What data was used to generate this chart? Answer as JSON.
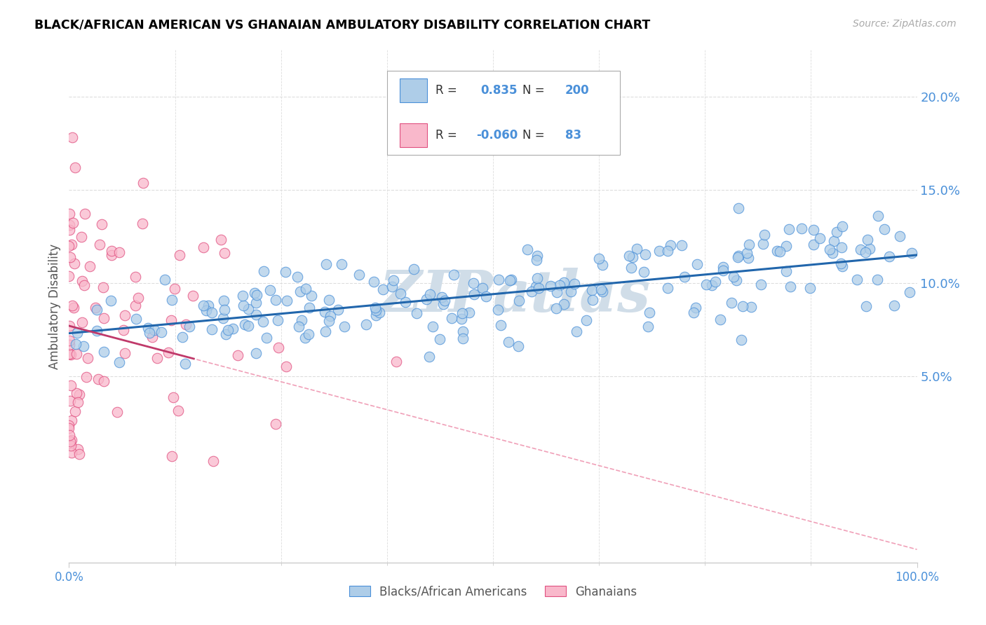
{
  "title": "BLACK/AFRICAN AMERICAN VS GHANAIAN AMBULATORY DISABILITY CORRELATION CHART",
  "source": "Source: ZipAtlas.com",
  "ylabel": "Ambulatory Disability",
  "blue_R": 0.835,
  "blue_N": 200,
  "pink_R": -0.06,
  "pink_N": 83,
  "blue_color": "#aecde8",
  "pink_color": "#f9b8cb",
  "blue_edge_color": "#4a90d9",
  "pink_edge_color": "#e05080",
  "blue_line_color": "#2166ac",
  "pink_line_solid_color": "#c0396a",
  "pink_line_dashed_color": "#f0a0b8",
  "watermark_color": "#d0dde8",
  "yaxis_label_color": "#4a90d9",
  "yaxis_labels": [
    "5.0%",
    "10.0%",
    "15.0%",
    "20.0%"
  ],
  "yaxis_values": [
    0.05,
    0.1,
    0.15,
    0.2
  ],
  "xlim": [
    0.0,
    1.0
  ],
  "ylim": [
    -0.05,
    0.225
  ],
  "legend_label_blue": "Blacks/African Americans",
  "legend_label_pink": "Ghanaians",
  "grid_color": "#dddddd",
  "spine_color": "#cccccc"
}
